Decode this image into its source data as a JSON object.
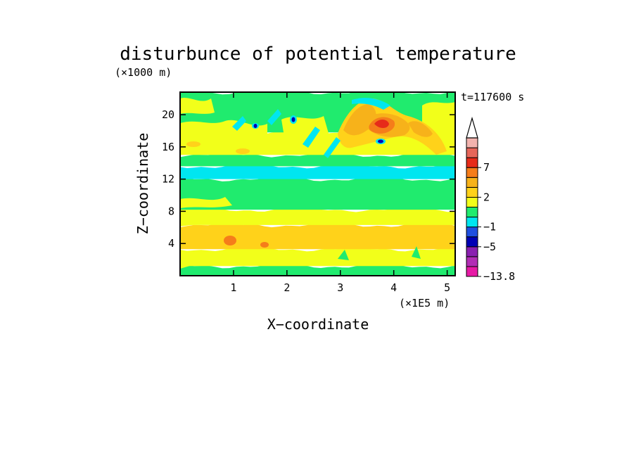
{
  "chart_data": {
    "type": "heatmap",
    "title": "disturbunce of potential temperature",
    "y_unit": "(×1000 m)",
    "x_unit": "(×1E5 m)",
    "xlabel": "X−coordinate",
    "ylabel": "Z−coordinate",
    "time_label": "t=117600 s",
    "xlim": [
      0,
      5.15
    ],
    "ylim": [
      0,
      22.8
    ],
    "x_ticks": [
      1,
      2,
      3,
      4,
      5
    ],
    "y_ticks": [
      4,
      8,
      12,
      16,
      20
    ],
    "colorbar": {
      "levels": [
        {
          "color": "#e61aa5"
        },
        {
          "color": "#b22db5"
        },
        {
          "color": "#8a1fb0"
        },
        {
          "color": "#0000b4"
        },
        {
          "color": "#1f4fe0"
        },
        {
          "color": "#00e6f0"
        },
        {
          "color": "#20eb6e"
        },
        {
          "color": "#f2ff1a"
        },
        {
          "color": "#ffd21a"
        },
        {
          "color": "#f7b21a"
        },
        {
          "color": "#f57d1a"
        },
        {
          "color": "#e62b1a"
        },
        {
          "color": "#e6665a"
        },
        {
          "color": "#f2b3ae"
        }
      ],
      "labels": [
        {
          "text": "7",
          "value": 7
        },
        {
          "text": "2",
          "value": 2
        },
        {
          "text": "−1",
          "value": -1
        },
        {
          "text": "−5",
          "value": -5
        },
        {
          "text": "−13.8",
          "value": -13.8
        }
      ]
    },
    "bands": [
      {
        "z_from": 0,
        "z_to": 1.2,
        "level": "green"
      },
      {
        "z_from": 1.2,
        "z_to": 3.3,
        "level": "yellow"
      },
      {
        "z_from": 3.3,
        "z_to": 6.3,
        "level": "orange-light"
      },
      {
        "z_from": 6.3,
        "z_to": 8.2,
        "level": "yellow"
      },
      {
        "z_from": 8.2,
        "z_to": 12.0,
        "level": "green"
      },
      {
        "z_from": 12.0,
        "z_to": 13.6,
        "level": "cyan"
      },
      {
        "z_from": 13.6,
        "z_to": 15.0,
        "level": "green"
      },
      {
        "z_from": 15.0,
        "z_to": 17.8,
        "level": "yellow"
      },
      {
        "z_from": 17.8,
        "z_to": 22.8,
        "level": "green"
      }
    ]
  }
}
